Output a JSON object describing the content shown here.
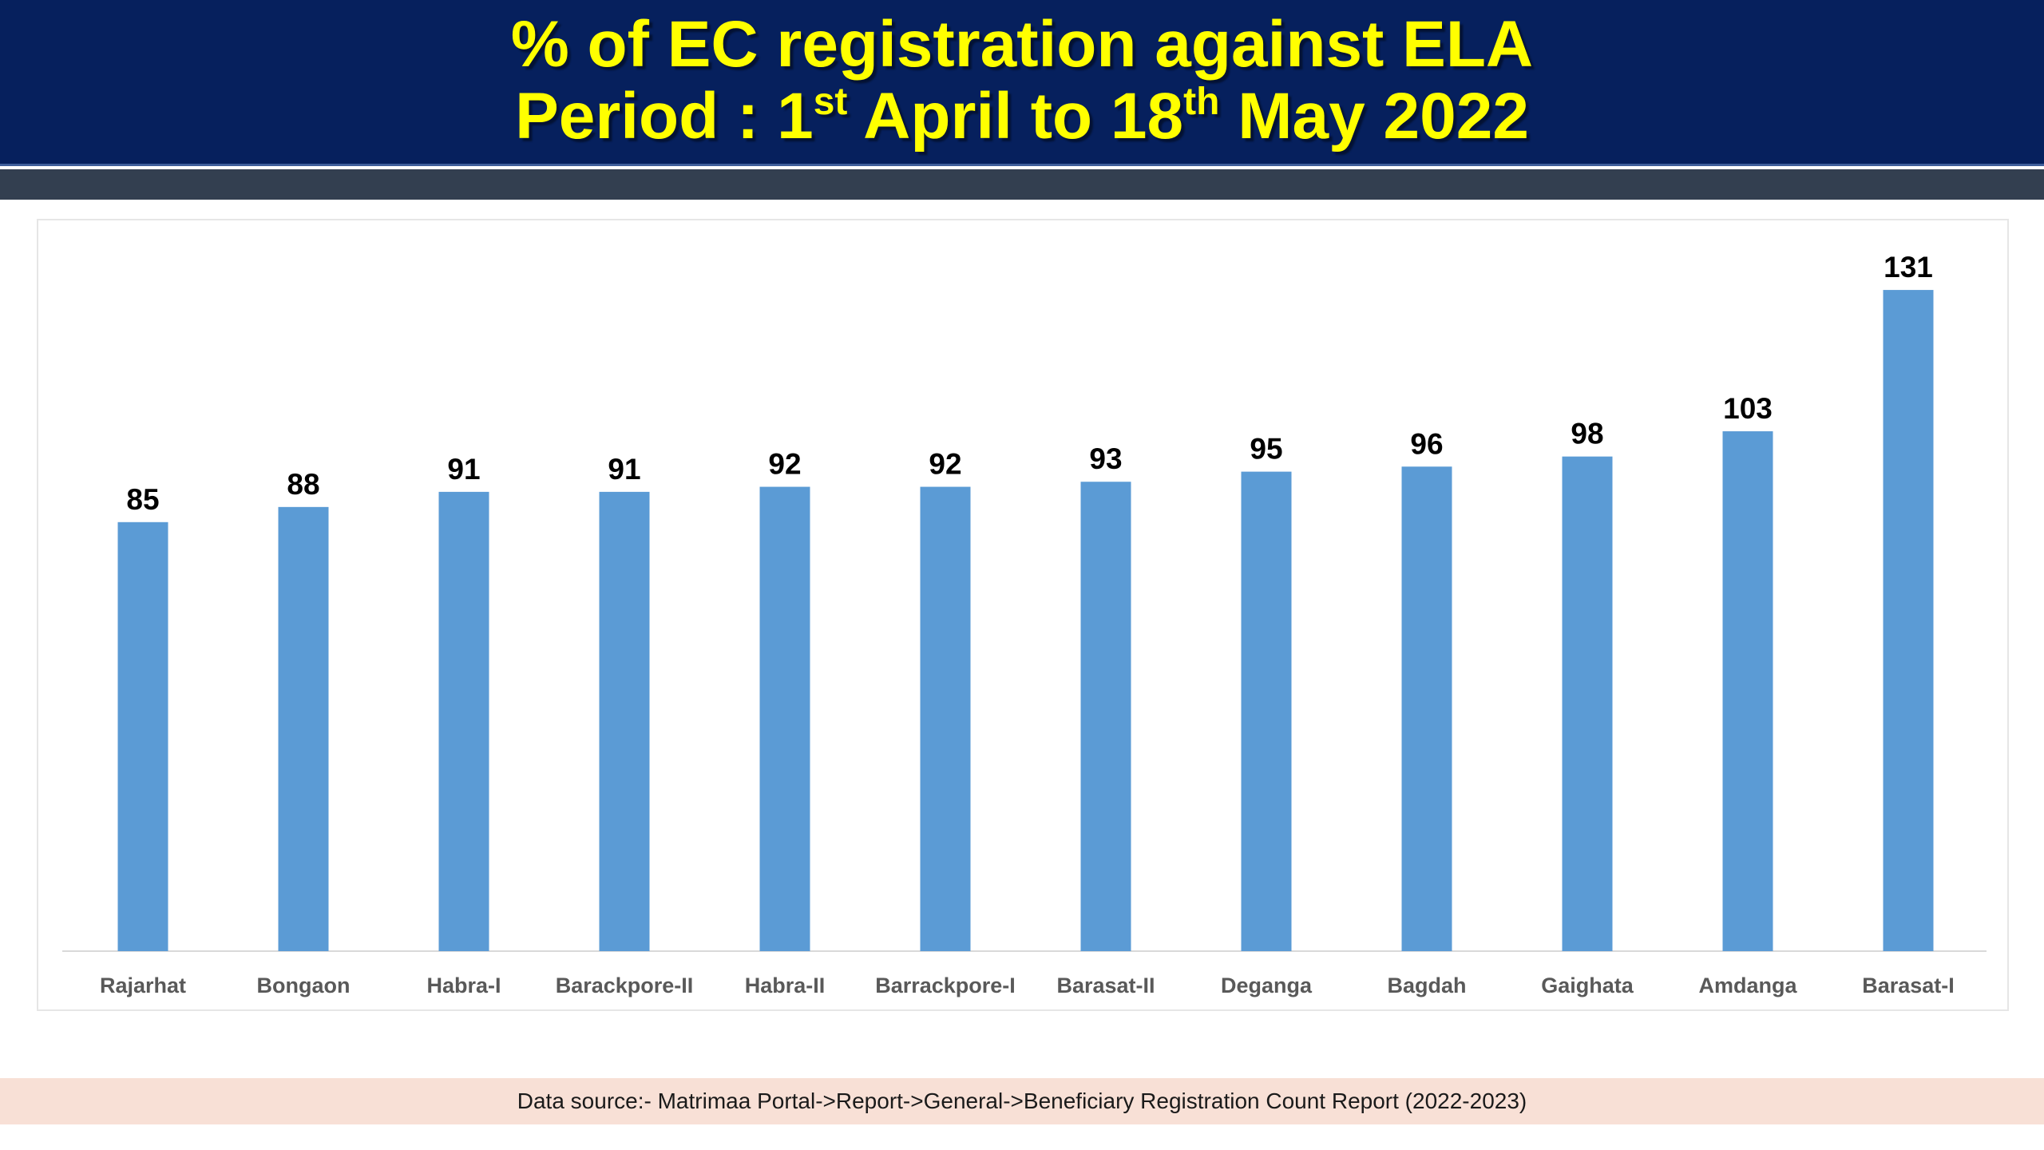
{
  "title": {
    "line1": "% of EC registration against ELA",
    "line2_prefix": "Period : 1",
    "line2_sup1": "st",
    "line2_middle": " April  to 18",
    "line2_sup2": "th",
    "line2_suffix": " May 2022"
  },
  "colors": {
    "banner": "#06205d",
    "title_text": "#ffff00",
    "stripe": "#333f50",
    "bar": "#5b9bd5",
    "footer_bg": "#f8e0d6"
  },
  "chart_data": {
    "type": "bar",
    "title": "% of EC registration against ELA",
    "categories": [
      "Rajarhat",
      "Bongaon",
      "Habra-I",
      "Barackpore-II",
      "Habra-II",
      "Barrackpore-I",
      "Barasat-II",
      "Deganga",
      "Bagdah",
      "Gaighata",
      "Amdanga",
      "Barasat-I"
    ],
    "values": [
      85,
      88,
      91,
      91,
      92,
      92,
      93,
      95,
      96,
      98,
      103,
      131
    ],
    "data_labels": [
      "85",
      "88",
      "91",
      "91",
      "92",
      "92",
      "93",
      "95",
      "96",
      "98",
      "103",
      "131"
    ],
    "xlabel": "",
    "ylabel": "",
    "ylim": [
      0,
      140
    ],
    "grid": false,
    "legend": "none"
  },
  "footer": {
    "source": "Data source:- Matrimaa Portal->Report->General->Beneficiary Registration Count Report (2022-2023)"
  }
}
